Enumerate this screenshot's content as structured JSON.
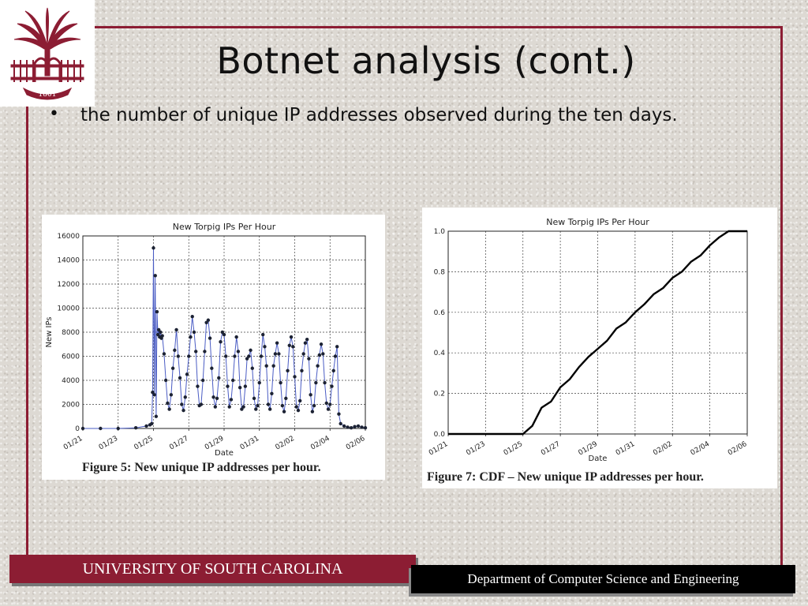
{
  "slide": {
    "title": "Botnet analysis (cont.)",
    "bullet": "the number of unique IP addresses observed during the ten days."
  },
  "logo": {
    "year": "1801"
  },
  "colors": {
    "garnet": "#8c1d33",
    "series_blue": "#4a5cc4",
    "marker": "#1c2233"
  },
  "chart_data": [
    {
      "type": "line",
      "title": "New Torpig IPs Per Hour",
      "xlabel": "Date",
      "ylabel": "New IPs",
      "caption": "Figure 5: New unique IP addresses per hour.",
      "ylim": [
        0,
        16000
      ],
      "yticks": [
        0,
        2000,
        4000,
        6000,
        8000,
        10000,
        12000,
        14000,
        16000
      ],
      "yticklabels": [
        "0",
        "2000",
        "4000",
        "6000",
        "8000",
        "10000",
        "12000",
        "14000",
        "16000"
      ],
      "xticks": [
        "01/21",
        "01/23",
        "01/25",
        "01/27",
        "01/29",
        "01/31",
        "02/02",
        "02/04",
        "02/06"
      ],
      "xlim": [
        0,
        16
      ],
      "grid": true,
      "markers": true,
      "series": [
        {
          "x": [
            0,
            1,
            2,
            3,
            3.6,
            3.8,
            3.9,
            3.95,
            4.0,
            4.05,
            4.1,
            4.15,
            4.2,
            4.25,
            4.3,
            4.35,
            4.4,
            4.45,
            4.5,
            4.6,
            4.7,
            4.8,
            4.9,
            5.0,
            5.1,
            5.2,
            5.3,
            5.4,
            5.5,
            5.6,
            5.7,
            5.8,
            5.9,
            6.0,
            6.1,
            6.2,
            6.3,
            6.4,
            6.5,
            6.6,
            6.7,
            6.8,
            6.9,
            7.0,
            7.1,
            7.2,
            7.3,
            7.4,
            7.5,
            7.6,
            7.7,
            7.8,
            7.9,
            8.0,
            8.1,
            8.2,
            8.3,
            8.4,
            8.5,
            8.6,
            8.7,
            8.8,
            8.9,
            9.0,
            9.1,
            9.2,
            9.3,
            9.4,
            9.5,
            9.6,
            9.7,
            9.8,
            9.9,
            10.0,
            10.1,
            10.2,
            10.3,
            10.4,
            10.5,
            10.6,
            10.7,
            10.8,
            10.9,
            11.0,
            11.1,
            11.2,
            11.3,
            11.4,
            11.5,
            11.6,
            11.7,
            11.8,
            11.9,
            12.0,
            12.1,
            12.2,
            12.3,
            12.4,
            12.5,
            12.6,
            12.7,
            12.8,
            12.9,
            13.0,
            13.1,
            13.2,
            13.3,
            13.4,
            13.5,
            13.6,
            13.7,
            13.8,
            13.9,
            14.0,
            14.1,
            14.2,
            14.3,
            14.4,
            14.5,
            14.6,
            14.8,
            15.0,
            15.2,
            15.4,
            15.6,
            15.8,
            16.0
          ],
          "values": [
            0,
            0,
            0,
            50,
            200,
            300,
            400,
            3000,
            15000,
            2800,
            12700,
            1000,
            9700,
            7800,
            8200,
            7600,
            8000,
            7500,
            7700,
            6200,
            4000,
            2100,
            1600,
            2800,
            5000,
            6500,
            8200,
            6000,
            4200,
            2000,
            1500,
            2600,
            4500,
            6000,
            7600,
            9300,
            8000,
            6400,
            3500,
            1900,
            2000,
            4000,
            6400,
            8800,
            9000,
            7500,
            5000,
            2600,
            1800,
            2500,
            4200,
            7200,
            8000,
            7800,
            6000,
            3500,
            1800,
            2400,
            4000,
            6000,
            7600,
            6400,
            3400,
            1600,
            1800,
            3500,
            5800,
            6000,
            6500,
            5000,
            2500,
            1600,
            1900,
            3800,
            6000,
            7800,
            6800,
            5200,
            2000,
            1600,
            2900,
            5200,
            6200,
            7100,
            6200,
            3800,
            1900,
            1400,
            2500,
            4800,
            6900,
            7600,
            6800,
            4300,
            1800,
            1500,
            2300,
            4800,
            6200,
            7100,
            7400,
            5800,
            2800,
            1400,
            1900,
            3800,
            5200,
            6100,
            7000,
            6200,
            3800,
            2100,
            1600,
            2000,
            3500,
            4800,
            6000,
            6800,
            1200,
            400,
            200,
            100,
            50,
            150,
            200,
            100,
            50
          ]
        }
      ]
    },
    {
      "type": "line",
      "title": "New Torpig IPs Per Hour",
      "xlabel": "Date",
      "ylabel": "New IPs",
      "caption": "Figure 7: CDF – New unique IP addresses per hour.",
      "ylim": [
        0,
        1.0
      ],
      "yticks": [
        0,
        0.2,
        0.4,
        0.6,
        0.8,
        1.0
      ],
      "yticklabels": [
        "0.0",
        "0.2",
        "0.4",
        "0.6",
        "0.8",
        "1.0"
      ],
      "xticks": [
        "01/21",
        "01/23",
        "01/25",
        "01/27",
        "01/29",
        "01/31",
        "02/02",
        "02/04",
        "02/06"
      ],
      "xlim": [
        0,
        16
      ],
      "grid": true,
      "markers": false,
      "series": [
        {
          "x": [
            0,
            1,
            2,
            3,
            4.0,
            4.5,
            5.0,
            5.5,
            6.0,
            6.5,
            7.0,
            7.5,
            8.0,
            8.5,
            9.0,
            9.5,
            10.0,
            10.5,
            11.0,
            11.5,
            12.0,
            12.5,
            13.0,
            13.5,
            14.0,
            14.5,
            15.0,
            15.5,
            16.0
          ],
          "values": [
            0,
            0,
            0,
            0,
            0.0,
            0.04,
            0.13,
            0.16,
            0.23,
            0.27,
            0.33,
            0.38,
            0.42,
            0.46,
            0.52,
            0.55,
            0.6,
            0.64,
            0.69,
            0.72,
            0.77,
            0.8,
            0.85,
            0.88,
            0.93,
            0.97,
            1.0,
            1.0,
            1.0
          ]
        }
      ]
    }
  ],
  "footer": {
    "left": "UNIVERSITY OF SOUTH CAROLINA",
    "right": "Department of Computer Science and Engineering"
  }
}
